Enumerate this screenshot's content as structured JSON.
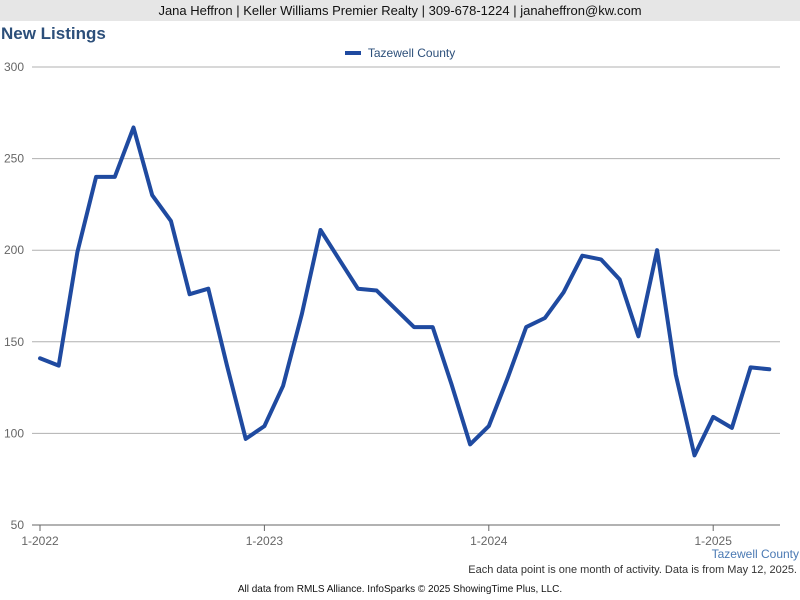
{
  "header": {
    "contact_line": "Jana Heffron | Keller Williams Premier Realty | 309-678-1224 | janaheffron@kw.com"
  },
  "footer": {
    "series_label": "Tazewell County",
    "note": "Each data point is one month of activity. Data is from May 12, 2025.",
    "source": "All data from RMLS Alliance. InfoSparks © 2025 ShowingTime Plus, LLC."
  },
  "colors": {
    "line": "#1f4aa0",
    "title": "#2c4f7a",
    "grid": "#b0b0b0",
    "header_bg": "#e6e6e6"
  },
  "chart_data": {
    "type": "line",
    "title": "New Listings",
    "legend_position": "top-center",
    "grid": true,
    "ylim": [
      50,
      300
    ],
    "y_ticks": [
      50,
      100,
      150,
      200,
      250,
      300
    ],
    "x_ticks": [
      {
        "label": "1-2022",
        "index": 0
      },
      {
        "label": "1-2023",
        "index": 12
      },
      {
        "label": "1-2024",
        "index": 24
      },
      {
        "label": "1-2025",
        "index": 36
      }
    ],
    "x": [
      "2022-01",
      "2022-02",
      "2022-03",
      "2022-04",
      "2022-05",
      "2022-06",
      "2022-07",
      "2022-08",
      "2022-09",
      "2022-10",
      "2022-11",
      "2022-12",
      "2023-01",
      "2023-02",
      "2023-03",
      "2023-04",
      "2023-05",
      "2023-06",
      "2023-07",
      "2023-08",
      "2023-09",
      "2023-10",
      "2023-11",
      "2023-12",
      "2024-01",
      "2024-02",
      "2024-03",
      "2024-04",
      "2024-05",
      "2024-06",
      "2024-07",
      "2024-08",
      "2024-09",
      "2024-10",
      "2024-11",
      "2024-12",
      "2025-01",
      "2025-02",
      "2025-03",
      "2025-04"
    ],
    "series": [
      {
        "name": "Tazewell County",
        "values": [
          141,
          137,
          199,
          240,
          240,
          267,
          230,
          216,
          176,
          179,
          137,
          97,
          104,
          126,
          165,
          211,
          195,
          179,
          178,
          168,
          158,
          158,
          127,
          94,
          104,
          130,
          158,
          163,
          177,
          197,
          195,
          184,
          153,
          200,
          132,
          88,
          109,
          103,
          136,
          135
        ]
      }
    ]
  }
}
